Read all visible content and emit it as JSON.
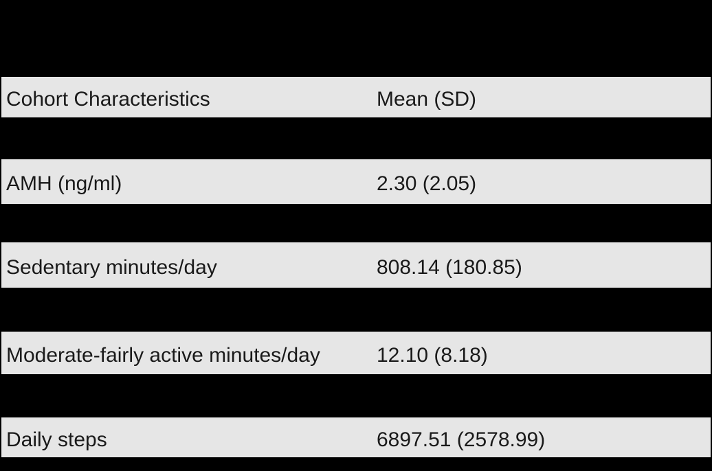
{
  "colors": {
    "page_background": "#000000",
    "band_background": "#e6e6e6",
    "text": "#1a1a1a"
  },
  "table": {
    "header": {
      "label": "Cohort Characteristics",
      "value": "Mean (SD)"
    },
    "rows": [
      {
        "label": "AMH (ng/ml)",
        "value": "2.30 (2.05)"
      },
      {
        "label": "Sedentary minutes/day",
        "value": "808.14 (180.85)"
      },
      {
        "label": "Moderate-fairly active minutes/day",
        "value": "12.10 (8.18)"
      },
      {
        "label": "Daily steps",
        "value": "6897.51 (2578.99)"
      }
    ]
  }
}
